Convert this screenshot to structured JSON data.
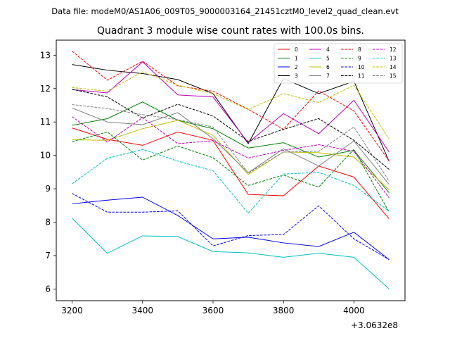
{
  "figure": {
    "suptitle": "Data file: modeM0/AS1A06_009T05_9000003164_21451cztM0_level2_quad_clean.evt"
  },
  "chart_data": {
    "type": "line",
    "title": "Quadrant 3 module wise count rates with 100.0s bins.",
    "xlabel": "",
    "ylabel": "",
    "x_offset_label": "+3.0632e8",
    "x": [
      3200,
      3300,
      3400,
      3500,
      3600,
      3700,
      3800,
      3900,
      4000,
      4100
    ],
    "xlim": [
      3155,
      4145
    ],
    "ylim": [
      5.65,
      13.45
    ],
    "xticks": [
      3200,
      3400,
      3600,
      3800,
      4000
    ],
    "yticks": [
      6,
      7,
      8,
      9,
      10,
      11,
      12,
      13
    ],
    "grid": false,
    "legend": {
      "placement": "upper-right",
      "columns": 4
    },
    "series": [
      {
        "name": "0",
        "color": "#ff0000",
        "dash": "solid",
        "values": [
          10.82,
          10.48,
          10.3,
          10.7,
          10.45,
          8.83,
          8.79,
          9.68,
          9.35,
          8.1
        ]
      },
      {
        "name": "1",
        "color": "#008000",
        "dash": "solid",
        "values": [
          10.9,
          11.1,
          11.6,
          11.05,
          10.8,
          10.22,
          10.38,
          9.95,
          10.15,
          8.88
        ]
      },
      {
        "name": "2",
        "color": "#0000ff",
        "dash": "solid",
        "values": [
          8.55,
          8.66,
          8.75,
          8.2,
          7.5,
          7.55,
          7.38,
          7.27,
          7.7,
          6.88
        ]
      },
      {
        "name": "3",
        "color": "#000000",
        "dash": "solid",
        "values": [
          12.72,
          12.55,
          12.45,
          12.27,
          11.85,
          10.35,
          12.3,
          11.85,
          12.22,
          9.82
        ]
      },
      {
        "name": "4",
        "color": "#bf00bf",
        "dash": "solid",
        "values": [
          11.97,
          11.87,
          12.8,
          11.81,
          11.75,
          10.38,
          11.25,
          10.65,
          11.65,
          10.1
        ]
      },
      {
        "name": "5",
        "color": "#00bfbf",
        "dash": "solid",
        "values": [
          8.12,
          7.07,
          7.59,
          7.57,
          7.12,
          7.08,
          6.95,
          7.07,
          6.95,
          6.0
        ]
      },
      {
        "name": "6",
        "color": "#bfbf00",
        "dash": "solid",
        "values": [
          10.47,
          10.45,
          10.8,
          11.05,
          10.6,
          9.43,
          10.1,
          10.08,
          9.95,
          8.97
        ]
      },
      {
        "name": "7",
        "color": "#808080",
        "dash": "solid",
        "values": [
          11.42,
          11.0,
          10.92,
          11.28,
          10.5,
          9.48,
          10.2,
          9.68,
          10.43,
          9.13
        ]
      },
      {
        "name": "8",
        "color": "#ff0000",
        "dash": "dashed",
        "values": [
          13.12,
          12.25,
          12.82,
          12.08,
          11.92,
          11.38,
          10.78,
          11.93,
          11.33,
          9.83
        ]
      },
      {
        "name": "9",
        "color": "#008000",
        "dash": "dashed",
        "values": [
          10.41,
          10.7,
          9.86,
          10.28,
          9.93,
          9.1,
          9.41,
          9.05,
          10.18,
          8.3
        ]
      },
      {
        "name": "10",
        "color": "#0000ff",
        "dash": "dashed",
        "values": [
          8.86,
          8.3,
          8.3,
          8.34,
          7.29,
          7.6,
          7.63,
          8.49,
          7.5,
          6.88
        ]
      },
      {
        "name": "11",
        "color": "#000000",
        "dash": "dashed",
        "values": [
          11.98,
          11.75,
          11.12,
          11.53,
          11.18,
          10.42,
          10.78,
          11.1,
          10.45,
          9.58
        ]
      },
      {
        "name": "12",
        "color": "#bf00bf",
        "dash": "dashed",
        "values": [
          11.16,
          10.4,
          11.13,
          10.35,
          10.44,
          9.92,
          10.15,
          10.32,
          10.12,
          8.73
        ]
      },
      {
        "name": "13",
        "color": "#00bfbf",
        "dash": "dashed",
        "values": [
          9.15,
          9.91,
          10.18,
          9.83,
          9.54,
          8.27,
          9.44,
          9.49,
          9.1,
          8.33
        ]
      },
      {
        "name": "14",
        "color": "#bfbf00",
        "dash": "dashed",
        "values": [
          12.03,
          11.92,
          12.5,
          12.1,
          11.85,
          11.37,
          11.85,
          11.58,
          12.1,
          10.49
        ]
      },
      {
        "name": "15",
        "color": "#808080",
        "dash": "dashed",
        "values": [
          11.52,
          11.4,
          11.22,
          11.07,
          10.85,
          9.47,
          10.1,
          10.12,
          10.85,
          9.23
        ]
      }
    ]
  }
}
